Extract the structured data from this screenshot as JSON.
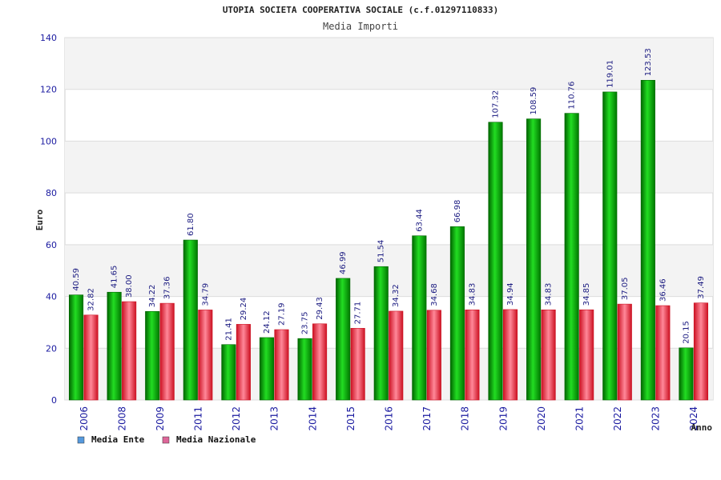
{
  "chart_data": {
    "type": "bar",
    "title": "UTOPIA SOCIETA COOPERATIVA SOCIALE (c.f.01297110833)",
    "subtitle": "Media Importi",
    "xlabel": "Anno",
    "ylabel": "Euro",
    "ylim": [
      0,
      140
    ],
    "yticks": [
      0,
      20,
      40,
      60,
      80,
      100,
      120,
      140
    ],
    "categories": [
      "2006",
      "2008",
      "2009",
      "2011",
      "2012",
      "2013",
      "2014",
      "2015",
      "2016",
      "2017",
      "2018",
      "2019",
      "2020",
      "2021",
      "2022",
      "2023",
      "2024"
    ],
    "series": [
      {
        "name": "Media Ente",
        "values": [
          40.59,
          41.65,
          34.22,
          61.8,
          21.41,
          24.12,
          23.75,
          46.99,
          51.54,
          63.44,
          66.98,
          107.32,
          108.59,
          110.76,
          119.01,
          123.53,
          20.15
        ],
        "labels": [
          "40.59",
          "41.65",
          "34.22",
          "61.80",
          "21.41",
          "24.12",
          "23.75",
          "46.99",
          "51.54",
          "63.44",
          "66.98",
          "107.32",
          "108.59",
          "110.76",
          "119.01",
          "123.53",
          "20.15"
        ],
        "color": "#11b811",
        "dark": "#006600",
        "legend_color": "#5599dd"
      },
      {
        "name": "Media Nazionale",
        "values": [
          32.82,
          38.0,
          37.36,
          34.79,
          29.24,
          27.19,
          29.43,
          27.71,
          34.32,
          34.68,
          34.83,
          34.94,
          34.83,
          34.85,
          37.05,
          36.46,
          37.49
        ],
        "labels": [
          "32.82",
          "38.00",
          "37.36",
          "34.79",
          "29.24",
          "27.19",
          "29.43",
          "27.71",
          "34.32",
          "34.68",
          "34.83",
          "34.94",
          "34.83",
          "34.85",
          "37.05",
          "36.46",
          "37.49"
        ],
        "color": "#ee5566",
        "dark": "#cc1122",
        "legend_color": "#dd6699"
      }
    ],
    "grid": true,
    "legend_position": "bottom-left"
  }
}
